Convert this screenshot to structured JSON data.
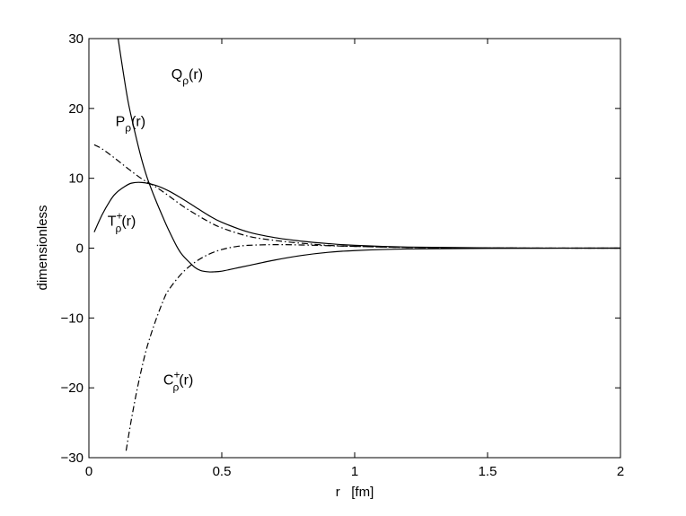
{
  "chart_data": {
    "type": "line",
    "xlabel": "r   [fm]",
    "ylabel": "dimensionless",
    "xlim": [
      0,
      2
    ],
    "ylim": [
      -30,
      30
    ],
    "x_ticks": [
      0,
      0.5,
      1,
      1.5,
      2
    ],
    "x_tick_labels": [
      "0",
      "0.5",
      "1",
      "1.5",
      "2"
    ],
    "y_ticks": [
      -30,
      -20,
      -10,
      0,
      10,
      20,
      30
    ],
    "y_tick_labels": [
      "−30",
      "−20",
      "−10",
      "0",
      "10",
      "20",
      "30"
    ],
    "grid": false,
    "legend": "none",
    "series": [
      {
        "name": "Q",
        "label_base": "Q",
        "label_sub": "ρ",
        "label_sup": "",
        "label_tail": "(r)",
        "style": "solid",
        "x": [
          0.11,
          0.13,
          0.15,
          0.18,
          0.2,
          0.22,
          0.25,
          0.28,
          0.3,
          0.33,
          0.35,
          0.38,
          0.4,
          0.42,
          0.45,
          0.47,
          0.5,
          0.55,
          0.6,
          0.7,
          0.8,
          0.9,
          1.0,
          1.2,
          1.5,
          2.0
        ],
        "y": [
          30,
          25,
          20.5,
          15.5,
          12.5,
          10,
          7,
          4.3,
          2.6,
          0.3,
          -0.9,
          -2.1,
          -2.8,
          -3.2,
          -3.4,
          -3.4,
          -3.3,
          -2.9,
          -2.5,
          -1.7,
          -1.05,
          -0.6,
          -0.35,
          -0.12,
          -0.03,
          0
        ]
      },
      {
        "name": "P",
        "label_base": "P",
        "label_sub": "ρ",
        "label_sup": "",
        "label_tail": "(r)",
        "style": "dashdot",
        "x": [
          0.02,
          0.05,
          0.1,
          0.15,
          0.2,
          0.25,
          0.3,
          0.35,
          0.4,
          0.45,
          0.5,
          0.6,
          0.7,
          0.8,
          0.9,
          1.0,
          1.2,
          1.5,
          2.0
        ],
        "y": [
          14.8,
          14.2,
          12.8,
          11.3,
          9.9,
          8.8,
          7.5,
          6.1,
          4.9,
          3.8,
          2.9,
          1.7,
          1.1,
          0.7,
          0.4,
          0.25,
          0.1,
          0.02,
          0
        ]
      },
      {
        "name": "T+",
        "label_base": "T",
        "label_sub": "ρ",
        "label_sup": "+",
        "label_tail": "(r)",
        "style": "solid",
        "x": [
          0.02,
          0.05,
          0.08,
          0.1,
          0.13,
          0.16,
          0.2,
          0.25,
          0.3,
          0.35,
          0.4,
          0.45,
          0.5,
          0.6,
          0.7,
          0.8,
          0.9,
          1.0,
          1.2,
          1.5,
          2.0
        ],
        "y": [
          2.3,
          4.8,
          6.8,
          7.8,
          8.7,
          9.3,
          9.4,
          9.0,
          8.2,
          7.1,
          5.9,
          4.7,
          3.7,
          2.3,
          1.5,
          1.0,
          0.65,
          0.4,
          0.15,
          0.03,
          0
        ]
      },
      {
        "name": "C+",
        "label_base": "C",
        "label_sub": "ρ",
        "label_sup": "+",
        "label_tail": "(r)",
        "style": "dashdot",
        "x": [
          0.14,
          0.16,
          0.18,
          0.2,
          0.22,
          0.25,
          0.28,
          0.3,
          0.35,
          0.4,
          0.45,
          0.5,
          0.55,
          0.6,
          0.7,
          0.8,
          0.9,
          1.0,
          1.2,
          1.5,
          2.0
        ],
        "y": [
          -29,
          -24.5,
          -20.5,
          -17,
          -14,
          -10.5,
          -7.5,
          -6,
          -3.6,
          -2,
          -0.9,
          -0.2,
          0.2,
          0.4,
          0.5,
          0.45,
          0.35,
          0.25,
          0.1,
          0.02,
          0
        ]
      }
    ],
    "annotations": [
      {
        "series": "Q",
        "x": 0.31,
        "y": 24.2
      },
      {
        "series": "P",
        "x": 0.1,
        "y": 17.5
      },
      {
        "series": "T+",
        "x": 0.07,
        "y": 3.2
      },
      {
        "series": "C+",
        "x": 0.28,
        "y": -19.5
      }
    ]
  }
}
